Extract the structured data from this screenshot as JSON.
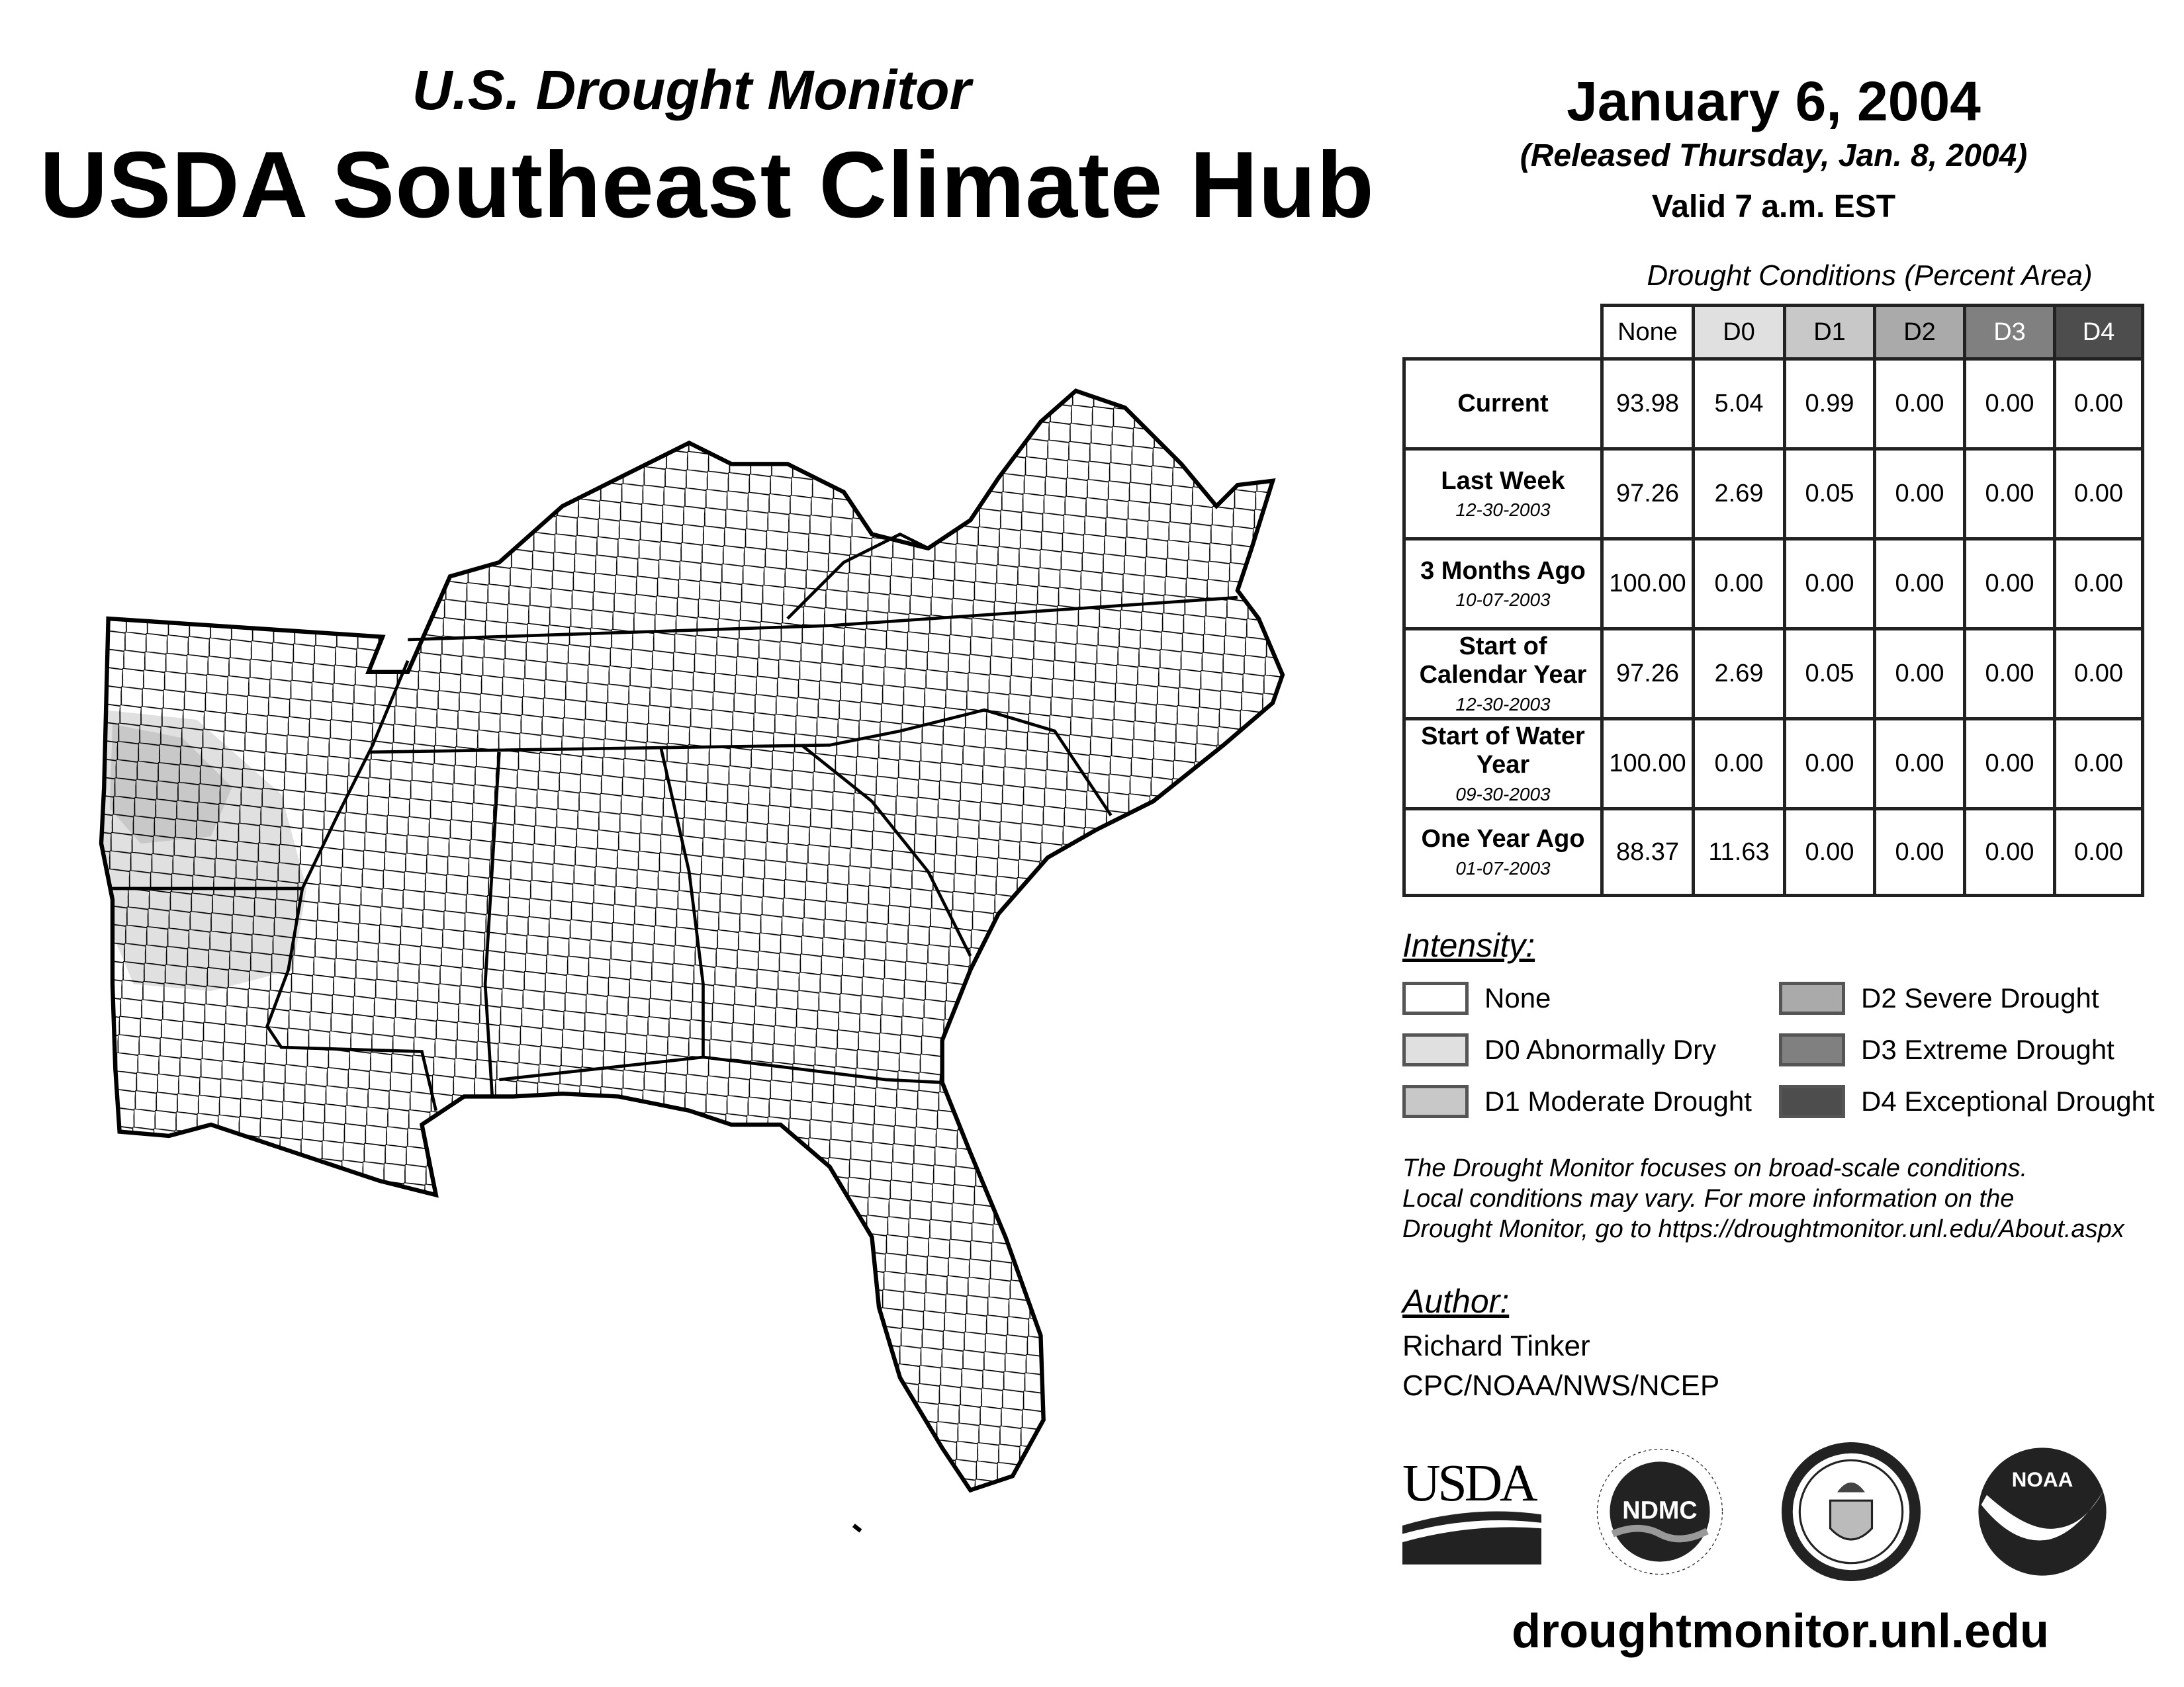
{
  "header": {
    "subtitle": "U.S. Drought Monitor",
    "title": "USDA Southeast Climate Hub",
    "date": "January 6, 2004",
    "released": "(Released Thursday, Jan. 8, 2004)",
    "valid": "Valid 7 a.m. EST"
  },
  "table": {
    "title": "Drought Conditions (Percent Area)",
    "columns": [
      "None",
      "D0",
      "D1",
      "D2",
      "D3",
      "D4"
    ],
    "column_colors": [
      "#ffffff",
      "#e0e0e0",
      "#c8c8c8",
      "#aaaaaa",
      "#808080",
      "#4d4d4d"
    ],
    "rows": [
      {
        "label": "Current",
        "date": "",
        "values": [
          "93.98",
          "5.04",
          "0.99",
          "0.00",
          "0.00",
          "0.00"
        ]
      },
      {
        "label": "Last Week",
        "date": "12-30-2003",
        "values": [
          "97.26",
          "2.69",
          "0.05",
          "0.00",
          "0.00",
          "0.00"
        ]
      },
      {
        "label": "3 Months Ago",
        "date": "10-07-2003",
        "values": [
          "100.00",
          "0.00",
          "0.00",
          "0.00",
          "0.00",
          "0.00"
        ]
      },
      {
        "label": "Start of Calendar Year",
        "date": "12-30-2003",
        "values": [
          "97.26",
          "2.69",
          "0.05",
          "0.00",
          "0.00",
          "0.00"
        ]
      },
      {
        "label": "Start of Water Year",
        "date": "09-30-2003",
        "values": [
          "100.00",
          "0.00",
          "0.00",
          "0.00",
          "0.00",
          "0.00"
        ]
      },
      {
        "label": "One Year Ago",
        "date": "01-07-2003",
        "values": [
          "88.37",
          "11.63",
          "0.00",
          "0.00",
          "0.00",
          "0.00"
        ]
      }
    ]
  },
  "legend": {
    "heading": "Intensity:",
    "items": [
      {
        "label": "None",
        "color": "#ffffff"
      },
      {
        "label": "D0 Abnormally Dry",
        "color": "#e0e0e0"
      },
      {
        "label": "D1 Moderate Drought",
        "color": "#c8c8c8"
      },
      {
        "label": "D2 Severe Drought",
        "color": "#aaaaaa"
      },
      {
        "label": "D3 Extreme Drought",
        "color": "#808080"
      },
      {
        "label": "D4 Exceptional Drought",
        "color": "#4d4d4d"
      }
    ]
  },
  "note": {
    "lines": [
      "The Drought Monitor focuses on broad-scale conditions.",
      "Local conditions may vary. For more information on the",
      "Drought Monitor, go to https://droughtmonitor.unl.edu/About.aspx"
    ]
  },
  "author": {
    "heading": "Author:",
    "name": "Richard Tinker",
    "org": "CPC/NOAA/NWS/NCEP"
  },
  "logos": {
    "usda": "USDA",
    "ndmc": "NDMC",
    "ndmc_ring": "NATIONAL DROUGHT MITIGATION CENTER • UNIVERSITY OF NEBRASKA",
    "doc_ring": "DEPARTMENT OF COMMERCE • UNITED STATES OF AMERICA",
    "noaa": "NOAA"
  },
  "footer": {
    "url": "droughtmonitor.unl.edu"
  }
}
